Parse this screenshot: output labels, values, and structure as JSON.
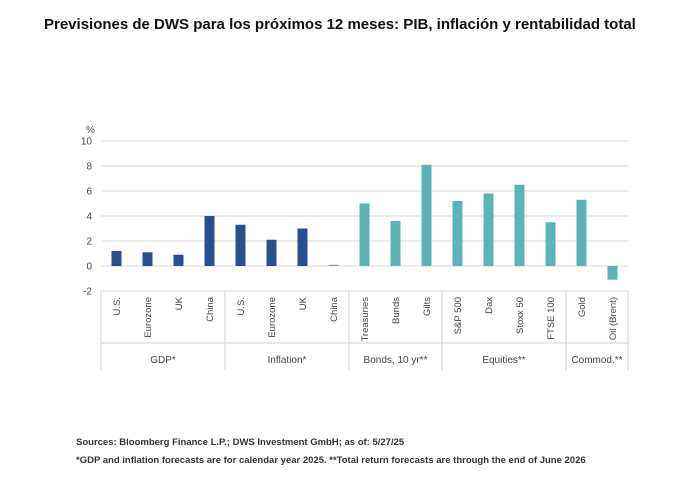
{
  "title": "Previsiones de DWS para los próximos 12 meses: PIB, inflación y rentabilidad total",
  "chart_data": {
    "type": "bar",
    "ylabel": "%",
    "ylim": [
      -2,
      10
    ],
    "yticks": [
      -2,
      0,
      2,
      4,
      6,
      8,
      10
    ],
    "grid": true,
    "categories": [
      "U.S.",
      "Eurozone",
      "UK",
      "China",
      "U.S.",
      "Eurozone",
      "UK",
      "China",
      "Treasuries",
      "Bunds",
      "Gilts",
      "S&P 500",
      "Dax",
      "Stoxx 50",
      "FTSE 100",
      "Gold",
      "Oil (Brent)"
    ],
    "values": [
      1.2,
      1.1,
      0.9,
      4.0,
      3.3,
      2.1,
      3.0,
      0.1,
      5.0,
      3.6,
      8.1,
      5.2,
      5.8,
      6.5,
      3.5,
      5.3,
      -1.1
    ],
    "groups": [
      {
        "label": "GDP*",
        "count": 4,
        "color": "#2a4f8f"
      },
      {
        "label": "Inflation*",
        "count": 4,
        "color": "#2a4f8f"
      },
      {
        "label": "Bonds, 10 yr**",
        "count": 3,
        "color": "#5bb5b5"
      },
      {
        "label": "Equities**",
        "count": 4,
        "color": "#5bb5b5"
      },
      {
        "label": "Commod.**",
        "count": 2,
        "color": "#5bb5b5"
      }
    ],
    "special_colors": {
      "7": "#9aa0a6"
    }
  },
  "notes": {
    "sources": "Sources: Bloomberg Finance L.P.; DWS Investment GmbH; as of: 5/27/25",
    "footnote": "*GDP and inflation forecasts are for calendar year 2025. **Total return forecasts are through the end of June 2026"
  }
}
